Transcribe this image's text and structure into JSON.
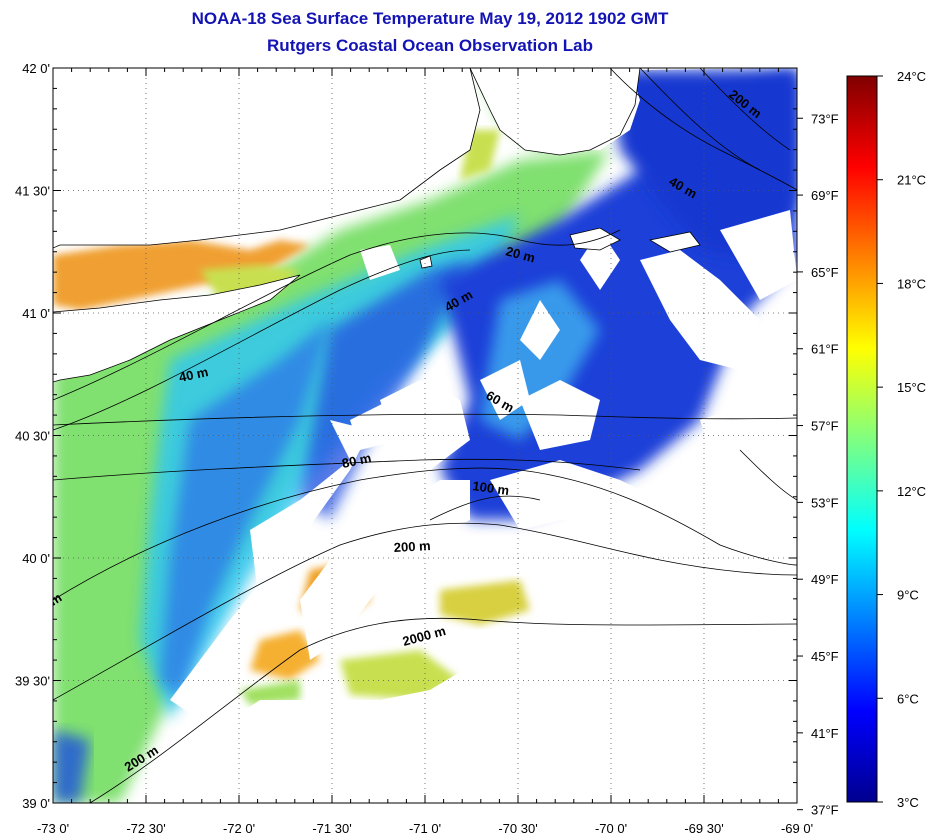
{
  "title": "NOAA-18 Sea Surface Temperature May 19, 2012 1902 GMT",
  "subtitle": "Rutgers Coastal Ocean Observation Lab",
  "chart_data": {
    "type": "heatmap",
    "map_extent": {
      "lon": [
        -73.0,
        -69.0
      ],
      "lat": [
        39.0,
        42.0
      ]
    },
    "lon_ticks": [
      "-73 0'",
      "-72 30'",
      "-72 0'",
      "-71 30'",
      "-71 0'",
      "-70 30'",
      "-70 0'",
      "-69 30'",
      "-69 0'"
    ],
    "lat_ticks": [
      "39 0'",
      "39 30'",
      "40 0'",
      "40 30'",
      "41 0'",
      "41 30'",
      "42 0'"
    ],
    "fahrenheit_ticks": [
      "37°F",
      "41°F",
      "45°F",
      "49°F",
      "53°F",
      "57°F",
      "61°F",
      "65°F",
      "69°F",
      "73°F"
    ],
    "colorbar": {
      "range_c": [
        3,
        24
      ],
      "labels": [
        "3°C",
        "6°C",
        "9°C",
        "12°C",
        "15°C",
        "18°C",
        "21°C",
        "24°C"
      ],
      "colors": [
        "#00008f",
        "#0000ff",
        "#0080ff",
        "#00ffff",
        "#80ff80",
        "#ffff00",
        "#ff8000",
        "#ff0000",
        "#800000"
      ]
    },
    "isobath_labels": [
      "200 m",
      "40 m",
      "20 m",
      "40 m",
      "40 m",
      "60 m",
      "80 m",
      "100 m",
      "200 m",
      "2000 m",
      "200 m",
      "m"
    ],
    "grid": "dotted"
  }
}
